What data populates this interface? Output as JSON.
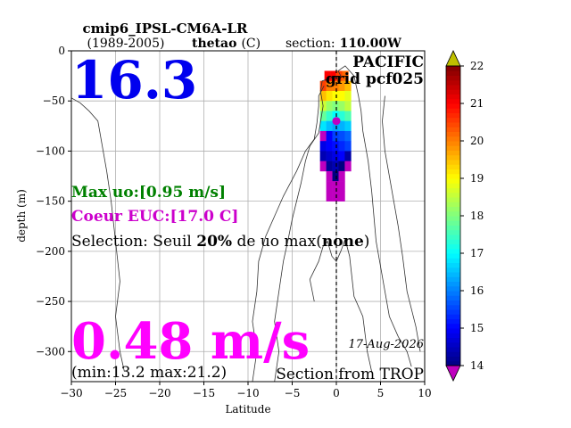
{
  "header": {
    "model": "cmip6_IPSL-CM6A-LR",
    "period": "(1989-2005)",
    "variable": "thetao",
    "unit": "(C)",
    "section_label": "section:",
    "section_value": "110.00W"
  },
  "overlay": {
    "big_value": "16.3",
    "ocean": "PACIFIC",
    "grid": "grid pcf025",
    "max_uo": "Max uo:[0.95 m/s]",
    "coeur": "Coeur EUC:[17.0 C]",
    "selection_prefix": "Selection: Seuil ",
    "selection_pct": "20%",
    "selection_mid": " de uo max(",
    "selection_none": "none",
    "selection_suffix": ")",
    "speed": "0.48 m/s",
    "minmax": "(min:13.2 max:21.2)",
    "date": "17-Aug-2026",
    "section_from": "Section from TROP"
  },
  "colors": {
    "big_value": "#0000ee",
    "ocean": "#000000",
    "max_uo": "#008000",
    "coeur": "#cc00cc",
    "speed": "#ff00ff"
  },
  "chart_data": {
    "type": "heatmap",
    "xlabel": "Latitude",
    "ylabel": "depth (m)",
    "xlim": [
      -30,
      10
    ],
    "ylim": [
      -330,
      0
    ],
    "xticks": [
      -30,
      -25,
      -20,
      -15,
      -10,
      -5,
      0,
      5,
      10
    ],
    "yticks": [
      0,
      -50,
      -100,
      -150,
      -200,
      -250,
      -300
    ],
    "grid": true,
    "colorbar": {
      "min": 14,
      "max": 22,
      "ticks": [
        14,
        15,
        16,
        17,
        18,
        19,
        20,
        21,
        22
      ],
      "colormap": "jet",
      "extend": "both"
    },
    "core_point": {
      "lat": 0,
      "depth": -70
    },
    "cells": [
      {
        "lat": -1.0,
        "depth": -25,
        "value": 21.0
      },
      {
        "lat": -0.3,
        "depth": -25,
        "value": 21.0
      },
      {
        "lat": 0.3,
        "depth": -25,
        "value": 20.5
      },
      {
        "lat": 1.0,
        "depth": -25,
        "value": 20.2
      },
      {
        "lat": -1.5,
        "depth": -35,
        "value": 20.5
      },
      {
        "lat": -0.8,
        "depth": -35,
        "value": 20.0
      },
      {
        "lat": -0.1,
        "depth": -35,
        "value": 20.0
      },
      {
        "lat": 0.6,
        "depth": -35,
        "value": 19.8
      },
      {
        "lat": 1.3,
        "depth": -35,
        "value": 19.5
      },
      {
        "lat": -1.5,
        "depth": -45,
        "value": 19.5
      },
      {
        "lat": -0.8,
        "depth": -45,
        "value": 19.2
      },
      {
        "lat": -0.1,
        "depth": -45,
        "value": 19.0
      },
      {
        "lat": 0.6,
        "depth": -45,
        "value": 19.0
      },
      {
        "lat": 1.3,
        "depth": -45,
        "value": 18.8
      },
      {
        "lat": -1.5,
        "depth": -55,
        "value": 18.6
      },
      {
        "lat": -0.8,
        "depth": -55,
        "value": 18.2
      },
      {
        "lat": -0.1,
        "depth": -55,
        "value": 18.0
      },
      {
        "lat": 0.6,
        "depth": -55,
        "value": 18.2
      },
      {
        "lat": 1.3,
        "depth": -55,
        "value": 18.5
      },
      {
        "lat": -1.5,
        "depth": -65,
        "value": 17.8
      },
      {
        "lat": -0.8,
        "depth": -65,
        "value": 17.4
      },
      {
        "lat": -0.1,
        "depth": -65,
        "value": 17.0
      },
      {
        "lat": 0.6,
        "depth": -65,
        "value": 17.3
      },
      {
        "lat": 1.3,
        "depth": -65,
        "value": 17.6
      },
      {
        "lat": -1.5,
        "depth": -75,
        "value": 16.8
      },
      {
        "lat": -0.8,
        "depth": -75,
        "value": 16.5
      },
      {
        "lat": -0.1,
        "depth": -75,
        "value": 16.3
      },
      {
        "lat": 0.6,
        "depth": -75,
        "value": 16.4
      },
      {
        "lat": 1.3,
        "depth": -75,
        "value": 16.6
      },
      {
        "lat": -1.5,
        "depth": -85,
        "value": 13.8
      },
      {
        "lat": -0.8,
        "depth": -85,
        "value": 15.0
      },
      {
        "lat": -0.1,
        "depth": -85,
        "value": 15.5
      },
      {
        "lat": 0.6,
        "depth": -85,
        "value": 15.6
      },
      {
        "lat": 1.3,
        "depth": -85,
        "value": 15.8
      },
      {
        "lat": -1.5,
        "depth": -95,
        "value": 14.8
      },
      {
        "lat": -0.8,
        "depth": -95,
        "value": 15.0
      },
      {
        "lat": -0.1,
        "depth": -95,
        "value": 15.1
      },
      {
        "lat": 0.6,
        "depth": -95,
        "value": 15.3
      },
      {
        "lat": 1.3,
        "depth": -95,
        "value": 15.5
      },
      {
        "lat": -1.5,
        "depth": -105,
        "value": 14.4
      },
      {
        "lat": -0.8,
        "depth": -105,
        "value": 14.6
      },
      {
        "lat": -0.1,
        "depth": -105,
        "value": 14.8
      },
      {
        "lat": 0.6,
        "depth": -105,
        "value": 15.0
      },
      {
        "lat": 1.3,
        "depth": -105,
        "value": 14.3
      },
      {
        "lat": -1.5,
        "depth": -115,
        "value": 13.6
      },
      {
        "lat": -0.8,
        "depth": -115,
        "value": 14.2
      },
      {
        "lat": -0.1,
        "depth": -115,
        "value": 14.4
      },
      {
        "lat": 0.6,
        "depth": -115,
        "value": 14.0
      },
      {
        "lat": 1.3,
        "depth": -115,
        "value": 13.6
      },
      {
        "lat": -0.8,
        "depth": -125,
        "value": 13.6
      },
      {
        "lat": -0.1,
        "depth": -125,
        "value": 14.0
      },
      {
        "lat": 0.6,
        "depth": -125,
        "value": 13.6
      },
      {
        "lat": -0.8,
        "depth": -135,
        "value": 13.5
      },
      {
        "lat": -0.1,
        "depth": -135,
        "value": 13.5
      },
      {
        "lat": 0.6,
        "depth": -135,
        "value": 13.5
      },
      {
        "lat": -0.8,
        "depth": -145,
        "value": 13.5
      },
      {
        "lat": -0.1,
        "depth": -145,
        "value": 13.5
      },
      {
        "lat": 0.6,
        "depth": -145,
        "value": 13.5
      }
    ],
    "contours": [
      [
        [
          -30,
          -47
        ],
        [
          -29,
          -52
        ],
        [
          -28,
          -60
        ],
        [
          -27,
          -70
        ],
        [
          -26.5,
          -95
        ],
        [
          -26,
          -120
        ],
        [
          -25.5,
          -150
        ],
        [
          -25,
          -190
        ],
        [
          -24.5,
          -230
        ],
        [
          -25,
          -265
        ],
        [
          -24.5,
          -300
        ],
        [
          -24,
          -320
        ]
      ],
      [
        [
          -7,
          -330
        ],
        [
          -6.5,
          -300
        ],
        [
          -7,
          -270
        ],
        [
          -6.5,
          -240
        ],
        [
          -6,
          -210
        ],
        [
          -5.5,
          -190
        ],
        [
          -5,
          -168
        ],
        [
          -4.5,
          -150
        ],
        [
          -4,
          -132
        ],
        [
          -3.5,
          -110
        ],
        [
          -3,
          -95
        ],
        [
          -2,
          -82
        ],
        [
          -1.5,
          -55
        ],
        [
          -1.8,
          -40
        ],
        [
          -1.6,
          -30
        ],
        [
          -0.5,
          -27
        ],
        [
          0.5,
          -25
        ],
        [
          0.2,
          -20
        ],
        [
          1,
          -15
        ],
        [
          2,
          -25
        ],
        [
          2.5,
          -45
        ],
        [
          2.8,
          -60
        ],
        [
          3,
          -80
        ],
        [
          3.6,
          -110
        ],
        [
          4,
          -140
        ],
        [
          4.2,
          -160
        ],
        [
          4.5,
          -190
        ],
        [
          5,
          -215
        ],
        [
          5.5,
          -240
        ],
        [
          6,
          -265
        ],
        [
          7,
          -285
        ],
        [
          8,
          -300
        ],
        [
          8.5,
          -315
        ]
      ],
      [
        [
          -9.5,
          -330
        ],
        [
          -9,
          -300
        ],
        [
          -9.5,
          -270
        ],
        [
          -9,
          -240
        ],
        [
          -8.8,
          -210
        ],
        [
          -8,
          -185
        ],
        [
          -7,
          -165
        ],
        [
          -6,
          -145
        ],
        [
          -4.5,
          -120
        ],
        [
          -3.5,
          -100
        ],
        [
          -2.5,
          -88
        ],
        [
          -2.2,
          -72
        ],
        [
          -2,
          -55
        ],
        [
          -2,
          -45
        ],
        [
          -1.4,
          -35
        ]
      ],
      [
        [
          5.5,
          -45
        ],
        [
          5.2,
          -70
        ],
        [
          5.5,
          -100
        ],
        [
          6,
          -125
        ],
        [
          6.5,
          -150
        ],
        [
          7,
          -175
        ],
        [
          7.5,
          -205
        ],
        [
          8,
          -240
        ],
        [
          9,
          -275
        ],
        [
          9.5,
          -300
        ]
      ],
      [
        [
          -2.5,
          -250
        ],
        [
          -3,
          -228
        ],
        [
          -2,
          -210
        ],
        [
          -1.5,
          -195
        ],
        [
          -1,
          -190
        ],
        [
          -0.5,
          -205
        ],
        [
          0,
          -210
        ],
        [
          0.5,
          -200
        ],
        [
          1,
          -188
        ],
        [
          1.5,
          -205
        ],
        [
          2,
          -245
        ],
        [
          3,
          -265
        ],
        [
          3.5,
          -300
        ],
        [
          4,
          -320
        ]
      ]
    ]
  }
}
